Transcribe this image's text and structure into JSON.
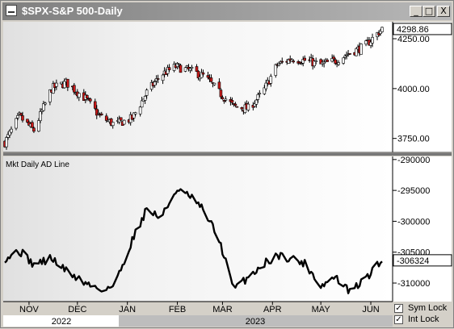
{
  "window": {
    "title": "$SPX-S&P 500-Daily",
    "controls": [
      "_",
      "□",
      "X"
    ]
  },
  "chart_data": [
    {
      "type": "candlestick",
      "title": "$SPX-S&P 500-Daily",
      "yticks": [
        4250,
        4000,
        3750
      ],
      "ylim": [
        3680,
        4335
      ],
      "last_value": "4298.86",
      "colors": {
        "up": "#ffffff",
        "down": "#cc1a1a",
        "wick": "#000000"
      },
      "x_dates": [
        "2022-10-17",
        "2022-10-26",
        "2022-11-04",
        "2022-11-15",
        "2022-11-24",
        "2022-12-06",
        "2022-12-15",
        "2022-12-24",
        "2023-01-04",
        "2023-01-13",
        "2023-01-22",
        "2023-01-31",
        "2023-02-09",
        "2023-02-18",
        "2023-02-27",
        "2023-03-08",
        "2023-03-17",
        "2023-03-26",
        "2023-04-04",
        "2023-04-13",
        "2023-04-22",
        "2023-05-01",
        "2023-05-10",
        "2023-05-19",
        "2023-05-28",
        "2023-06-08"
      ],
      "close_approx": [
        3730,
        3860,
        3790,
        4000,
        4030,
        3950,
        3860,
        3820,
        3850,
        3980,
        4070,
        4110,
        4090,
        4060,
        3980,
        3910,
        3900,
        3980,
        4120,
        4150,
        4140,
        4120,
        4140,
        4180,
        4210,
        4300
      ]
    },
    {
      "type": "line",
      "title": "Mkt Daily AD Line",
      "yticks": [
        -290000,
        -295000,
        -300000,
        -305000,
        -310000
      ],
      "ytick_labels": [
        "-290000",
        "-295000",
        "-300000",
        "-305000",
        "-310000"
      ],
      "ylim": [
        -313000,
        -289500
      ],
      "last_value": "-306324",
      "x_dates": [
        "2022-10-17",
        "2022-10-26",
        "2022-11-04",
        "2022-11-15",
        "2022-11-24",
        "2022-12-06",
        "2022-12-15",
        "2022-12-24",
        "2023-01-04",
        "2023-01-13",
        "2023-01-22",
        "2023-01-31",
        "2023-02-09",
        "2023-02-18",
        "2023-02-27",
        "2023-03-08",
        "2023-03-17",
        "2023-03-26",
        "2023-04-04",
        "2023-04-13",
        "2023-04-22",
        "2023-05-01",
        "2023-05-10",
        "2023-05-19",
        "2023-05-28",
        "2023-06-08"
      ],
      "values": [
        -306000,
        -304800,
        -307000,
        -306000,
        -308000,
        -310000,
        -311000,
        -310500,
        -303000,
        -298000,
        -299500,
        -295000,
        -296000,
        -298500,
        -303000,
        -311000,
        -309000,
        -307000,
        -305500,
        -306000,
        -307000,
        -310500,
        -309000,
        -311500,
        -309500,
        -306324
      ]
    }
  ],
  "x_axis": {
    "months": [
      "NOV",
      "DEC",
      "JAN",
      "FEB",
      "MAR",
      "APR",
      "MAY",
      "JUN"
    ],
    "years": [
      "2022",
      "2023"
    ]
  },
  "options": {
    "sym_lock": {
      "label": "Sym Lock",
      "checked": true
    },
    "int_lock": {
      "label": "Int Lock",
      "checked": true
    }
  }
}
